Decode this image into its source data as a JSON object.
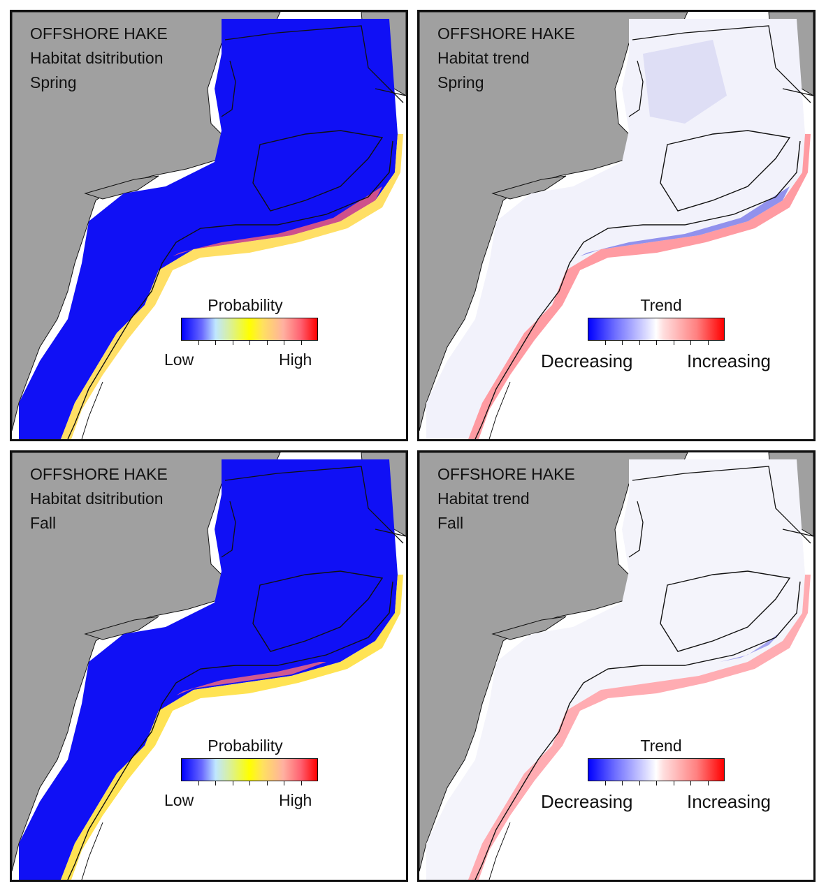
{
  "species": "OFFSHORE HAKE",
  "colors": {
    "land": "#a0a0a0",
    "ocean": "#ffffff",
    "low": "#0000ff",
    "mid": "#ffff00",
    "high": "#ff0000",
    "contour": "#111111"
  },
  "panels": [
    {
      "id": "spring-distribution",
      "species": "OFFSHORE HAKE",
      "metric": "Habitat dsitribution",
      "season": "Spring",
      "legend_title": "Probability",
      "legend_low": "Low",
      "legend_high": "High",
      "scale": "probability"
    },
    {
      "id": "spring-trend",
      "species": "OFFSHORE HAKE",
      "metric": "Habitat trend",
      "season": "Spring",
      "legend_title": "Trend",
      "legend_low": "Decreasing",
      "legend_high": "Increasing",
      "scale": "trend"
    },
    {
      "id": "fall-distribution",
      "species": "OFFSHORE HAKE",
      "metric": "Habitat dsitribution",
      "season": "Fall",
      "legend_title": "Probability",
      "legend_low": "Low",
      "legend_high": "High",
      "scale": "probability"
    },
    {
      "id": "fall-trend",
      "species": "OFFSHORE HAKE",
      "metric": "Habitat trend",
      "season": "Fall",
      "legend_title": "Trend",
      "legend_low": "Decreasing",
      "legend_high": "Increasing",
      "scale": "trend"
    }
  ]
}
